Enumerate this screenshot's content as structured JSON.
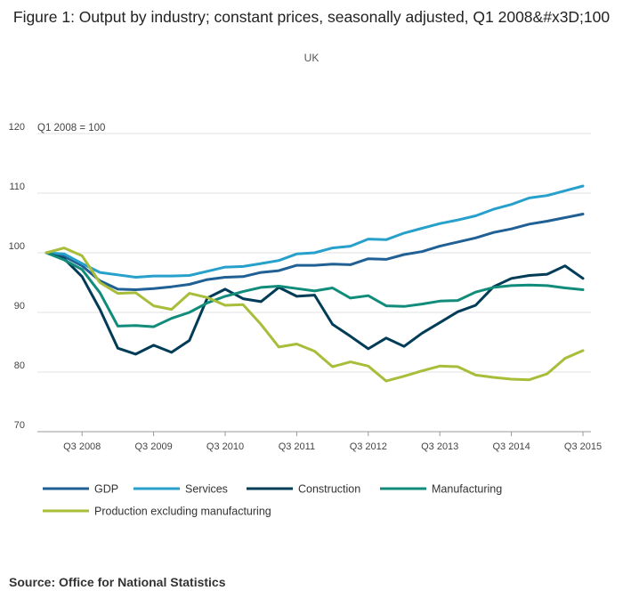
{
  "chart_data": {
    "type": "line",
    "title": "Figure 1: Output by industry; constant prices, seasonally adjusted, Q1 2008&#x3D;100",
    "subtitle": "UK",
    "index_note": "Q1 2008 = 100",
    "source": "Source: Office for National Statistics",
    "xlabel": "",
    "ylabel": "",
    "ylim": [
      70,
      120
    ],
    "yticks": [
      70,
      80,
      90,
      100,
      110,
      120
    ],
    "grid": true,
    "legend_position": "bottom",
    "x_count": 31,
    "x_tick_labels": [
      {
        "index": 2,
        "label": "Q3 2008"
      },
      {
        "index": 6,
        "label": "Q3 2009"
      },
      {
        "index": 10,
        "label": "Q3 2010"
      },
      {
        "index": 14,
        "label": "Q3 2011"
      },
      {
        "index": 18,
        "label": "Q3 2012"
      },
      {
        "index": 22,
        "label": "Q3 2013"
      },
      {
        "index": 26,
        "label": "Q3 2014"
      },
      {
        "index": 30,
        "label": "Q3 2015"
      }
    ],
    "series": [
      {
        "name": "GDP",
        "color": "#206095",
        "values": [
          100,
          99.4,
          97.8,
          95.3,
          93.9,
          93.8,
          94.0,
          94.3,
          94.7,
          95.5,
          95.9,
          96.0,
          96.7,
          97.0,
          97.9,
          97.9,
          98.1,
          98.0,
          99.0,
          98.9,
          99.7,
          100.2,
          101.1,
          101.8,
          102.5,
          103.4,
          104.0,
          104.8,
          105.3,
          105.9,
          106.5
        ]
      },
      {
        "name": "Services",
        "color": "#27a0cc",
        "values": [
          100,
          99.8,
          98.2,
          96.7,
          96.3,
          95.9,
          96.1,
          96.1,
          96.2,
          96.9,
          97.6,
          97.7,
          98.2,
          98.7,
          99.8,
          100.0,
          100.8,
          101.1,
          102.3,
          102.2,
          103.3,
          104.1,
          104.9,
          105.5,
          106.2,
          107.3,
          108.1,
          109.2,
          109.6,
          110.4,
          111.2
        ]
      },
      {
        "name": "Construction",
        "color": "#003c57",
        "values": [
          100,
          99.0,
          96.0,
          90.5,
          84.0,
          83.0,
          84.5,
          83.3,
          85.3,
          92.4,
          93.9,
          92.3,
          91.8,
          94.2,
          92.7,
          92.9,
          88.0,
          86.0,
          83.9,
          85.7,
          84.3,
          86.5,
          88.3,
          90.1,
          91.2,
          94.3,
          95.7,
          96.2,
          96.4,
          97.8,
          95.7
        ]
      },
      {
        "name": "Manufacturing",
        "color": "#118c7b",
        "values": [
          100,
          98.8,
          97.2,
          93.3,
          87.7,
          87.8,
          87.6,
          89.0,
          90.0,
          91.6,
          92.7,
          93.5,
          94.2,
          94.4,
          94.0,
          93.6,
          94.1,
          92.4,
          92.8,
          91.1,
          91.0,
          91.4,
          91.9,
          92.0,
          93.4,
          94.2,
          94.5,
          94.6,
          94.5,
          94.1,
          93.8
        ]
      },
      {
        "name": "Production excluding manufacturing",
        "color": "#a8bd3a",
        "values": [
          100,
          100.8,
          99.5,
          95.0,
          93.2,
          93.3,
          91.1,
          90.5,
          93.2,
          92.5,
          91.2,
          91.3,
          88.0,
          84.2,
          84.7,
          83.5,
          80.9,
          81.7,
          81.0,
          78.5,
          79.3,
          80.2,
          81.0,
          80.9,
          79.5,
          79.1,
          78.8,
          78.7,
          79.7,
          82.3,
          83.6
        ]
      }
    ]
  }
}
